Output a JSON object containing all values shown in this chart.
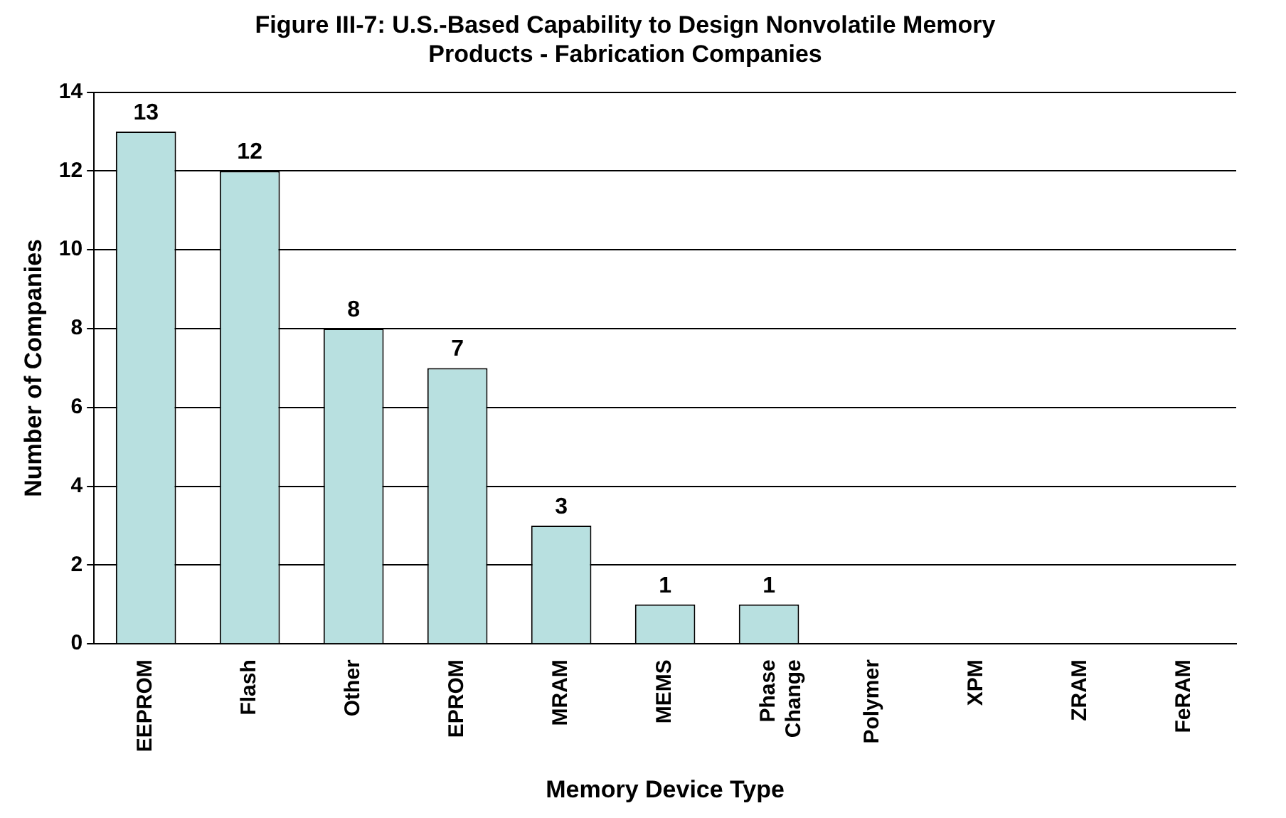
{
  "chart_data": {
    "type": "bar",
    "title": "Figure III-7: U.S.-Based Capability to Design Nonvolatile Memory Products - Fabrication Companies",
    "xlabel": "Memory Device Type",
    "ylabel": "Number of Companies",
    "categories": [
      "EEPROM",
      "Flash",
      "Other",
      "EPROM",
      "MRAM",
      "MEMS",
      "Phase Change",
      "Polymer",
      "XPM",
      "ZRAM",
      "FeRAM"
    ],
    "values": [
      13,
      12,
      8,
      7,
      3,
      1,
      1,
      0,
      0,
      0,
      0
    ],
    "value_labels": [
      "13",
      "12",
      "8",
      "7",
      "3",
      "1",
      "1",
      null,
      null,
      null,
      null
    ],
    "color": "#b8e0e0",
    "ylim": [
      0,
      14
    ],
    "yticks": [
      0,
      2,
      4,
      6,
      8,
      10,
      12,
      14
    ],
    "grid": "y",
    "legend": false
  }
}
